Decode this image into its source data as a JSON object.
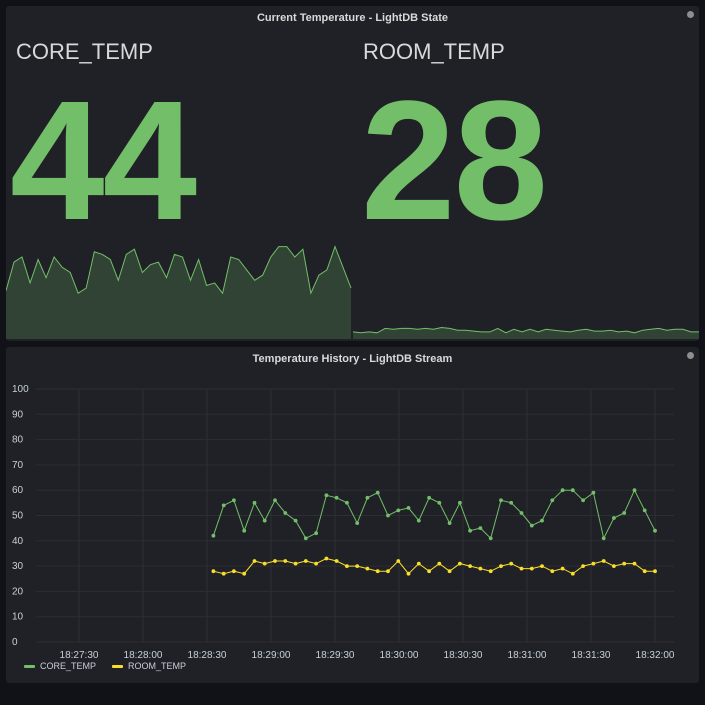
{
  "state_panel": {
    "title": "Current Temperature - LightDB State",
    "core": {
      "label": "CORE_TEMP",
      "value": "44"
    },
    "room": {
      "label": "ROOM_TEMP",
      "value": "28"
    }
  },
  "stream_panel": {
    "title": "Temperature History - LightDB Stream"
  },
  "colors": {
    "green": "#73bf69",
    "yellow": "#fade2a",
    "panel": "#1f2126",
    "background": "#111217"
  },
  "chart_data": [
    {
      "type": "area",
      "series": [
        {
          "name": "CORE_TEMP",
          "values": [
            42,
            53,
            55,
            45,
            54,
            47,
            55,
            51,
            49,
            41,
            43,
            57,
            56,
            54,
            46,
            56,
            58,
            49,
            52,
            53,
            47,
            56,
            55,
            46,
            54,
            44,
            45,
            41,
            55,
            54,
            50,
            46,
            48,
            55,
            59,
            59,
            55,
            58,
            41,
            48,
            50,
            59,
            51,
            43
          ]
        },
        {
          "name": "ROOM_TEMP",
          "values": [
            28,
            27,
            28,
            27,
            32,
            31,
            32,
            32,
            31,
            32,
            31,
            33,
            32,
            30,
            30,
            29,
            28,
            28,
            32,
            27,
            31,
            28,
            31,
            28,
            31,
            30,
            29,
            28,
            30,
            31,
            29,
            29,
            30,
            28,
            29,
            27,
            30,
            31,
            32,
            30,
            31,
            31,
            28,
            28
          ]
        }
      ]
    },
    {
      "type": "line",
      "x_labels": [
        "18:27:30",
        "18:28:00",
        "18:28:30",
        "18:29:00",
        "18:29:30",
        "18:30:00",
        "18:30:30",
        "18:31:00",
        "18:31:30",
        "18:32:00"
      ],
      "y_ticks": [
        0,
        10,
        20,
        30,
        40,
        50,
        60,
        70,
        80,
        90,
        100
      ],
      "ylim": [
        0,
        100
      ],
      "grid": true,
      "legend": "bottom-left",
      "series": [
        {
          "name": "CORE_TEMP",
          "color": "#73bf69",
          "values": [
            42,
            54,
            56,
            44,
            55,
            48,
            56,
            51,
            48,
            41,
            43,
            58,
            57,
            55,
            47,
            57,
            59,
            50,
            52,
            53,
            48,
            57,
            55,
            47,
            55,
            44,
            45,
            41,
            56,
            55,
            51,
            46,
            48,
            56,
            60,
            60,
            56,
            59,
            41,
            49,
            51,
            60,
            52,
            44
          ]
        },
        {
          "name": "ROOM_TEMP",
          "color": "#fade2a",
          "values": [
            28,
            27,
            28,
            27,
            32,
            31,
            32,
            32,
            31,
            32,
            31,
            33,
            32,
            30,
            30,
            29,
            28,
            28,
            32,
            27,
            31,
            28,
            31,
            28,
            31,
            30,
            29,
            28,
            30,
            31,
            29,
            29,
            30,
            28,
            29,
            27,
            30,
            31,
            32,
            30,
            31,
            31,
            28,
            28
          ]
        }
      ]
    }
  ]
}
